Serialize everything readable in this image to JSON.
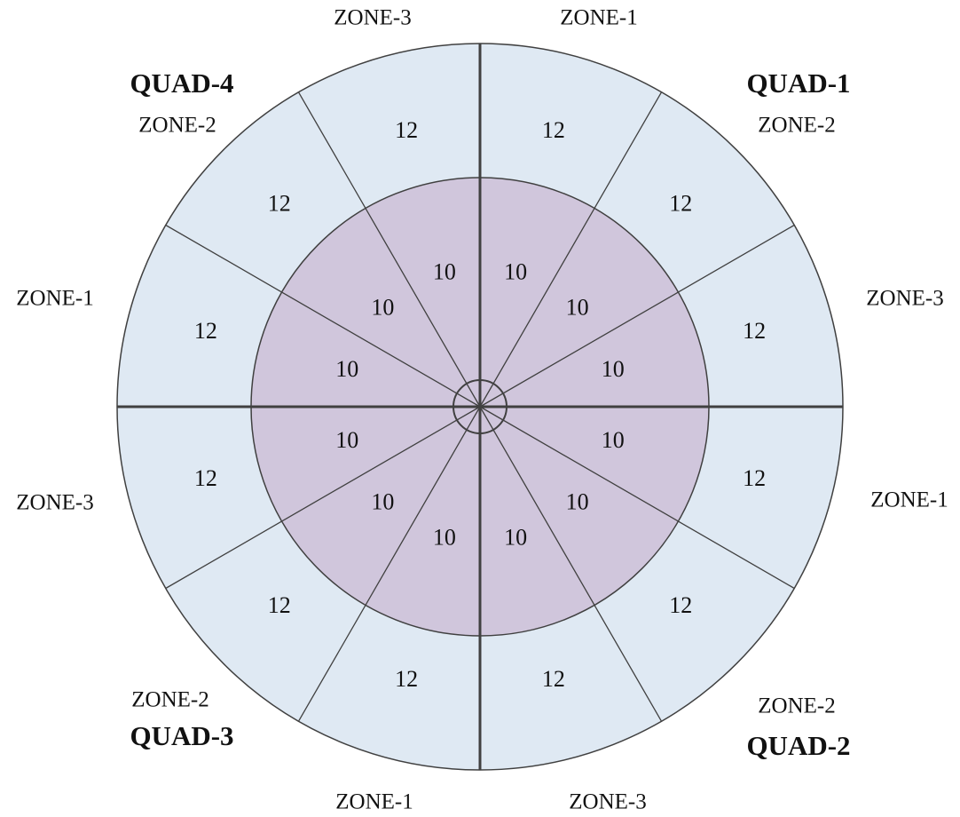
{
  "quadrants": [
    {
      "name": "QUAD-1",
      "zones": [
        {
          "name": "ZONE-1",
          "outer": 12,
          "inner": 10
        },
        {
          "name": "ZONE-2",
          "outer": 12,
          "inner": 10
        },
        {
          "name": "ZONE-3",
          "outer": 12,
          "inner": 10
        }
      ]
    },
    {
      "name": "QUAD-2",
      "zones": [
        {
          "name": "ZONE-1",
          "outer": 12,
          "inner": 10
        },
        {
          "name": "ZONE-2",
          "outer": 12,
          "inner": 10
        },
        {
          "name": "ZONE-3",
          "outer": 12,
          "inner": 10
        }
      ]
    },
    {
      "name": "QUAD-3",
      "zones": [
        {
          "name": "ZONE-1",
          "outer": 12,
          "inner": 10
        },
        {
          "name": "ZONE-2",
          "outer": 12,
          "inner": 10
        },
        {
          "name": "ZONE-3",
          "outer": 12,
          "inner": 10
        }
      ]
    },
    {
      "name": "QUAD-4",
      "zones": [
        {
          "name": "ZONE-1",
          "outer": 12,
          "inner": 10
        },
        {
          "name": "ZONE-2",
          "outer": 12,
          "inner": 10
        },
        {
          "name": "ZONE-3",
          "outer": 12,
          "inner": 10
        }
      ]
    }
  ]
}
